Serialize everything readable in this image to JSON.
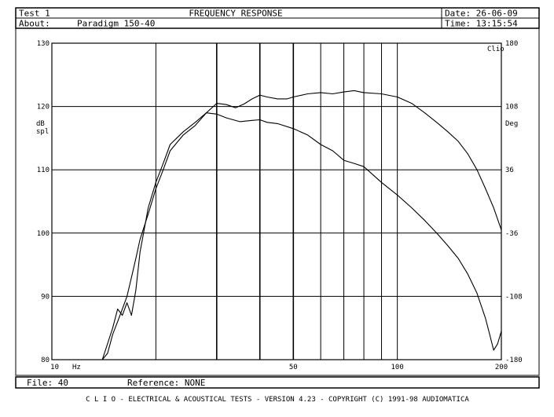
{
  "header": {
    "test": "Test 1",
    "title": "FREQUENCY RESPONSE",
    "date": "Date: 26-06-09",
    "about_label": "About:",
    "about_value": "Paradigm 150-40",
    "time": "Time: 13:15:54"
  },
  "footer": {
    "file": "File: 40",
    "reference": "Reference: NONE",
    "credits": "C L I O  -  ELECTRICAL & ACOUSTICAL TESTS  -  VERSION 4.23  -  COPYRIGHT (C) 1991-98 AUDIOMATICA"
  },
  "chart_data": {
    "type": "line",
    "title": "FREQUENCY RESPONSE",
    "xscale": "log",
    "xlim": [
      10,
      200
    ],
    "x_ticks": [
      {
        "value": 10,
        "label": "10"
      },
      {
        "value": 50,
        "label": "50"
      },
      {
        "value": 100,
        "label": "100"
      },
      {
        "value": 200,
        "label": "200"
      }
    ],
    "x_unit": "Hz",
    "x_gridlines": [
      20,
      30,
      40,
      50,
      60,
      70,
      80,
      90,
      100,
      200
    ],
    "ylim": [
      80,
      130
    ],
    "y_ticks": [
      80,
      90,
      100,
      110,
      120,
      130
    ],
    "ylabel": "dB\nspl",
    "y2lim": [
      -180,
      180
    ],
    "y2_ticks": [
      {
        "value": -180,
        "label": "-180"
      },
      {
        "value": -108,
        "label": "-108"
      },
      {
        "value": -36,
        "label": "-36"
      },
      {
        "value": 36,
        "label": "36"
      },
      {
        "value": 108,
        "label": "108"
      },
      {
        "value": 180,
        "label": "180"
      }
    ],
    "y2label": "Deg",
    "y2_corner": "Clio",
    "grid": true,
    "series": [
      {
        "x": [
          14,
          14.5,
          15,
          15.5,
          16,
          16.5,
          17,
          17.5,
          18,
          19,
          20,
          21,
          22,
          24,
          26,
          28,
          30,
          32,
          34,
          36,
          38,
          40,
          42,
          45,
          48,
          50,
          55,
          60,
          65,
          70,
          75,
          80,
          90,
          100,
          110,
          120,
          130,
          140,
          150,
          160,
          170,
          180,
          190,
          200
        ],
        "y": [
          80,
          81,
          84,
          86,
          88,
          90,
          93,
          96,
          99,
          103,
          107,
          110,
          113,
          115.5,
          117,
          119,
          120.5,
          120.3,
          119.8,
          120.4,
          121.2,
          121.8,
          121.5,
          121.2,
          121.2,
          121.5,
          122.0,
          122.2,
          122.0,
          122.3,
          122.5,
          122.2,
          122.0,
          121.5,
          120.5,
          119.0,
          117.5,
          116.0,
          114.5,
          112.5,
          110.0,
          107.0,
          104.0,
          100.5
        ]
      },
      {
        "x": [
          14,
          15,
          15.5,
          16,
          16.5,
          17,
          17.5,
          18,
          19,
          20,
          21,
          22,
          24,
          26,
          28,
          30,
          32,
          35,
          38,
          40,
          42,
          45,
          50,
          55,
          60,
          65,
          70,
          75,
          80,
          90,
          100,
          110,
          120,
          130,
          140,
          150,
          160,
          170,
          180,
          185,
          190,
          195,
          200
        ],
        "y": [
          80,
          85,
          88,
          87,
          89,
          87,
          91,
          97,
          104,
          108,
          111,
          114,
          116,
          117.5,
          119,
          118.8,
          118.2,
          117.6,
          117.8,
          117.9,
          117.5,
          117.3,
          116.5,
          115.5,
          114.0,
          113.0,
          111.5,
          111.0,
          110.5,
          108.0,
          106.0,
          104.0,
          102.0,
          100.0,
          98.0,
          96.0,
          93.5,
          90.5,
          86.5,
          84.0,
          81.5,
          82.5,
          84.5
        ]
      }
    ]
  }
}
